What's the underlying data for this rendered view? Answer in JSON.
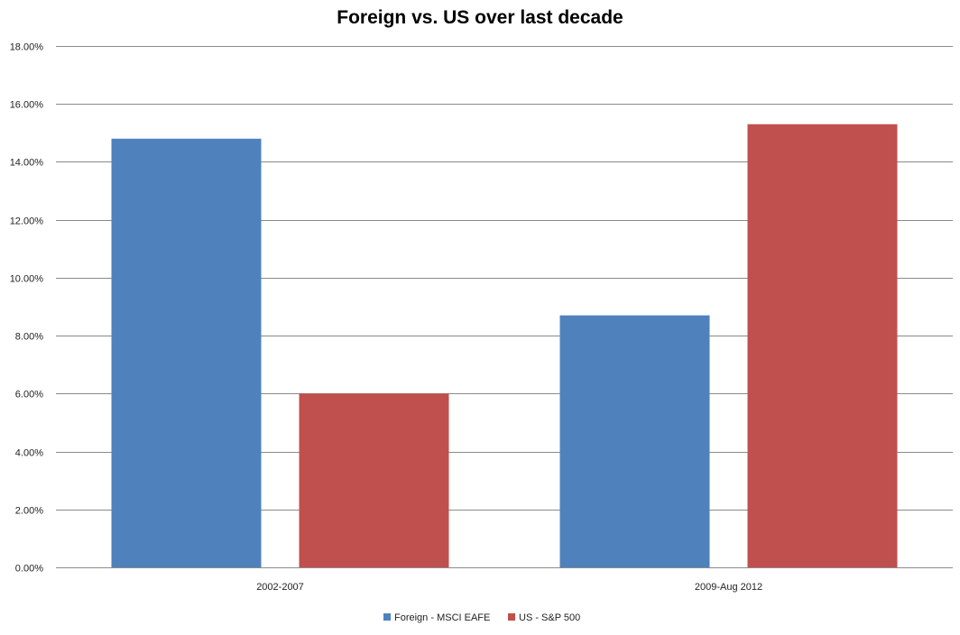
{
  "chart_data": {
    "type": "bar",
    "title": "Foreign vs. US over last decade",
    "xlabel": "",
    "ylabel": "",
    "categories": [
      "2002-2007",
      "2009-Aug 2012"
    ],
    "series": [
      {
        "name": "Foreign - MSCI EAFE",
        "color": "#4F81BD",
        "values": [
          0.148,
          0.087
        ]
      },
      {
        "name": "US - S&P 500",
        "color": "#C0504D",
        "values": [
          0.06,
          0.153
        ]
      }
    ],
    "ylim": [
      0,
      0.18
    ],
    "y_ticks": [
      0,
      0.02,
      0.04,
      0.06,
      0.08,
      0.1,
      0.12,
      0.14,
      0.16,
      0.18
    ],
    "y_tick_labels": [
      "0.00%",
      "2.00%",
      "4.00%",
      "6.00%",
      "8.00%",
      "10.00%",
      "12.00%",
      "14.00%",
      "16.00%",
      "18.00%"
    ],
    "grid": true,
    "legend_position": "bottom"
  }
}
